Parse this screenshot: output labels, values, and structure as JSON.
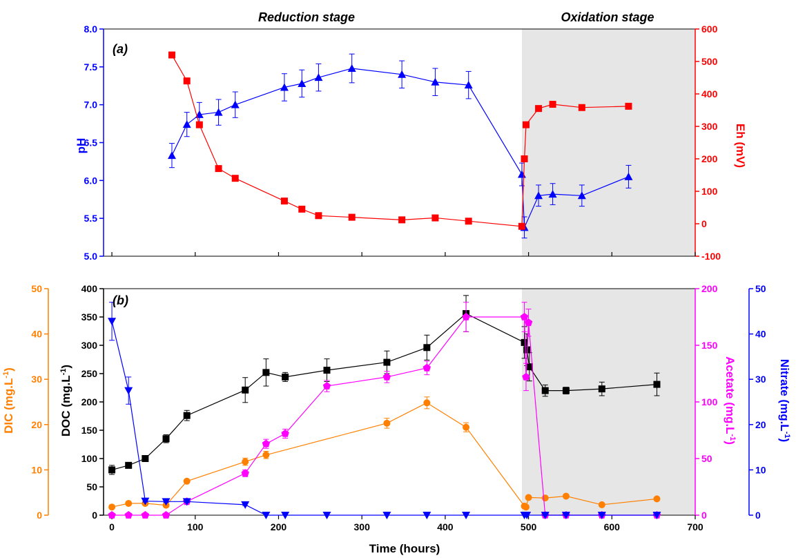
{
  "stage_labels": {
    "reduction": "Reduction stage",
    "oxidation": "Oxidation stage",
    "oxidation_start": 492
  },
  "colors": {
    "ph": "#0000ff",
    "eh": "#ff0000",
    "doc": "#000000",
    "dic": "#ff8000",
    "acetate": "#ff00ff",
    "nitrate": "#0000ff",
    "shade": "#e6e6e6"
  },
  "chart_data": [
    {
      "type": "line",
      "panel_label": "(a)",
      "xlim": [
        -10,
        700
      ],
      "left_axis": {
        "label": "pH",
        "range": [
          5.0,
          8.0
        ],
        "ticks": [
          5.0,
          5.5,
          6.0,
          6.5,
          7.0,
          7.5,
          8.0
        ],
        "tick_labels": [
          "5.0",
          "5.5",
          "6.0",
          "6.5",
          "7.0",
          "7.5",
          "8.0"
        ]
      },
      "right_axis": {
        "label": "Eh (mV)",
        "range": [
          -100,
          600
        ],
        "ticks": [
          -100,
          0,
          100,
          200,
          300,
          400,
          500,
          600
        ],
        "tick_labels": [
          "-100",
          "0",
          "100",
          "200",
          "300",
          "400",
          "500",
          "600"
        ]
      },
      "series": [
        {
          "key": "ph",
          "axis": "left",
          "marker": "triangle-up",
          "x": [
            72,
            90,
            105,
            128,
            148,
            207,
            228,
            248,
            288,
            348,
            388,
            428,
            492,
            495,
            512,
            529,
            564,
            620
          ],
          "y": [
            6.33,
            6.74,
            6.87,
            6.9,
            7.0,
            7.23,
            7.28,
            7.36,
            7.48,
            7.4,
            7.3,
            7.26,
            6.08,
            5.38,
            5.8,
            5.82,
            5.8,
            6.05
          ],
          "err": [
            0.16,
            0.16,
            0.16,
            0.17,
            0.17,
            0.18,
            0.18,
            0.18,
            0.19,
            0.18,
            0.18,
            0.18,
            0.15,
            0.14,
            0.14,
            0.14,
            0.14,
            0.15
          ]
        },
        {
          "key": "eh",
          "axis": "right",
          "marker": "square",
          "x": [
            72,
            90,
            105,
            128,
            148,
            207,
            228,
            248,
            288,
            348,
            388,
            428,
            492,
            495,
            497,
            512,
            529,
            564,
            620
          ],
          "y": [
            520,
            440,
            305,
            170,
            140,
            70,
            45,
            25,
            20,
            12,
            18,
            8,
            -8,
            200,
            305,
            355,
            368,
            358,
            362
          ]
        }
      ]
    },
    {
      "type": "line",
      "panel_label": "(b)",
      "xlabel": "Time (hours)",
      "xlim": [
        -10,
        700
      ],
      "x_ticks": [
        0,
        100,
        200,
        300,
        400,
        500,
        600,
        700
      ],
      "x_tick_labels": [
        "0",
        "100",
        "200",
        "300",
        "400",
        "500",
        "600",
        "700"
      ],
      "axes": {
        "dic": {
          "label": "DIC (mg.L",
          "sup": "-1",
          "close": ")",
          "range": [
            0,
            50
          ],
          "ticks": [
            0,
            10,
            20,
            30,
            40,
            50
          ],
          "tick_labels": [
            "0",
            "10",
            "20",
            "30",
            "40",
            "50"
          ]
        },
        "doc": {
          "label": "DOC (mg.L",
          "sup": "-1",
          "close": ")",
          "range": [
            0,
            400
          ],
          "ticks": [
            0,
            50,
            100,
            150,
            200,
            250,
            300,
            350,
            400
          ],
          "tick_labels": [
            "0",
            "50",
            "100",
            "150",
            "200",
            "250",
            "300",
            "350",
            "400"
          ]
        },
        "acetate": {
          "label": "Acetate (mg.L",
          "sup": "-1",
          "close": ")",
          "range": [
            0,
            200
          ],
          "ticks": [
            0,
            50,
            100,
            150,
            200
          ],
          "tick_labels": [
            "0",
            "50",
            "100",
            "150",
            "200"
          ]
        },
        "nitrate": {
          "label": "Nitrate (mg.L",
          "sup": "-1",
          "close": ")",
          "range": [
            0,
            50
          ],
          "ticks": [
            0,
            10,
            20,
            30,
            40,
            50
          ],
          "tick_labels": [
            "0",
            "10",
            "20",
            "30",
            "40",
            "50"
          ]
        }
      },
      "series": [
        {
          "key": "doc",
          "axis": "doc",
          "marker": "square",
          "x": [
            0,
            20,
            40,
            65,
            90,
            160,
            185,
            208,
            258,
            330,
            378,
            425,
            495,
            498,
            501,
            520,
            545,
            588,
            654
          ],
          "y": [
            80,
            88,
            100,
            135,
            176,
            221,
            252,
            244,
            256,
            270,
            296,
            356,
            305,
            292,
            262,
            220,
            220,
            223,
            231
          ],
          "err": [
            8,
            5,
            5,
            7,
            9,
            22,
            24,
            8,
            20,
            20,
            22,
            32,
            28,
            28,
            25,
            10,
            6,
            12,
            20
          ]
        },
        {
          "key": "dic",
          "axis": "dic",
          "marker": "circle",
          "x": [
            0,
            20,
            40,
            65,
            90,
            160,
            185,
            330,
            378,
            425,
            495,
            497,
            500,
            520,
            545,
            588,
            654
          ],
          "y": [
            1.8,
            2.6,
            2.6,
            2.2,
            7.5,
            11.8,
            13.3,
            20.3,
            24.8,
            19.4,
            2.0,
            1.8,
            3.9,
            3.8,
            4.2,
            2.3,
            3.6
          ],
          "err": [
            0.3,
            0.3,
            0.3,
            0.3,
            0.3,
            0.8,
            0.8,
            1.1,
            1.3,
            1.0,
            0.3,
            0.3,
            0.3,
            0.3,
            0.3,
            0.3,
            0.3
          ]
        },
        {
          "key": "acetate",
          "axis": "acetate",
          "marker": "pentagon",
          "x": [
            0,
            20,
            40,
            65,
            90,
            160,
            185,
            208,
            258,
            330,
            378,
            425,
            495,
            497,
            500,
            520,
            545,
            588,
            654
          ],
          "y": [
            0,
            0,
            0,
            0,
            12,
            37,
            63,
            72,
            114,
            122,
            130,
            175,
            175,
            122,
            170,
            0,
            0,
            0,
            0
          ],
          "err": [
            0,
            0,
            0,
            0,
            1,
            3,
            4,
            4,
            5,
            5,
            6,
            13,
            13,
            12,
            12,
            0,
            0,
            0,
            0
          ]
        },
        {
          "key": "nitrate",
          "axis": "nitrate",
          "marker": "triangle-down",
          "x": [
            0,
            20,
            40,
            65,
            90,
            160,
            185,
            208,
            258,
            330,
            378,
            425,
            495,
            498,
            520,
            545,
            588,
            654
          ],
          "y": [
            42.8,
            27.5,
            3.1,
            3.0,
            3.0,
            2.3,
            0,
            0,
            0,
            0,
            0,
            0,
            0,
            0,
            0,
            0,
            0,
            0
          ],
          "err": [
            4.2,
            3.0,
            0.2,
            0.2,
            0.2,
            0.2,
            0,
            0,
            0,
            0,
            0,
            0,
            0,
            0,
            0,
            0,
            0,
            0
          ]
        }
      ]
    }
  ]
}
